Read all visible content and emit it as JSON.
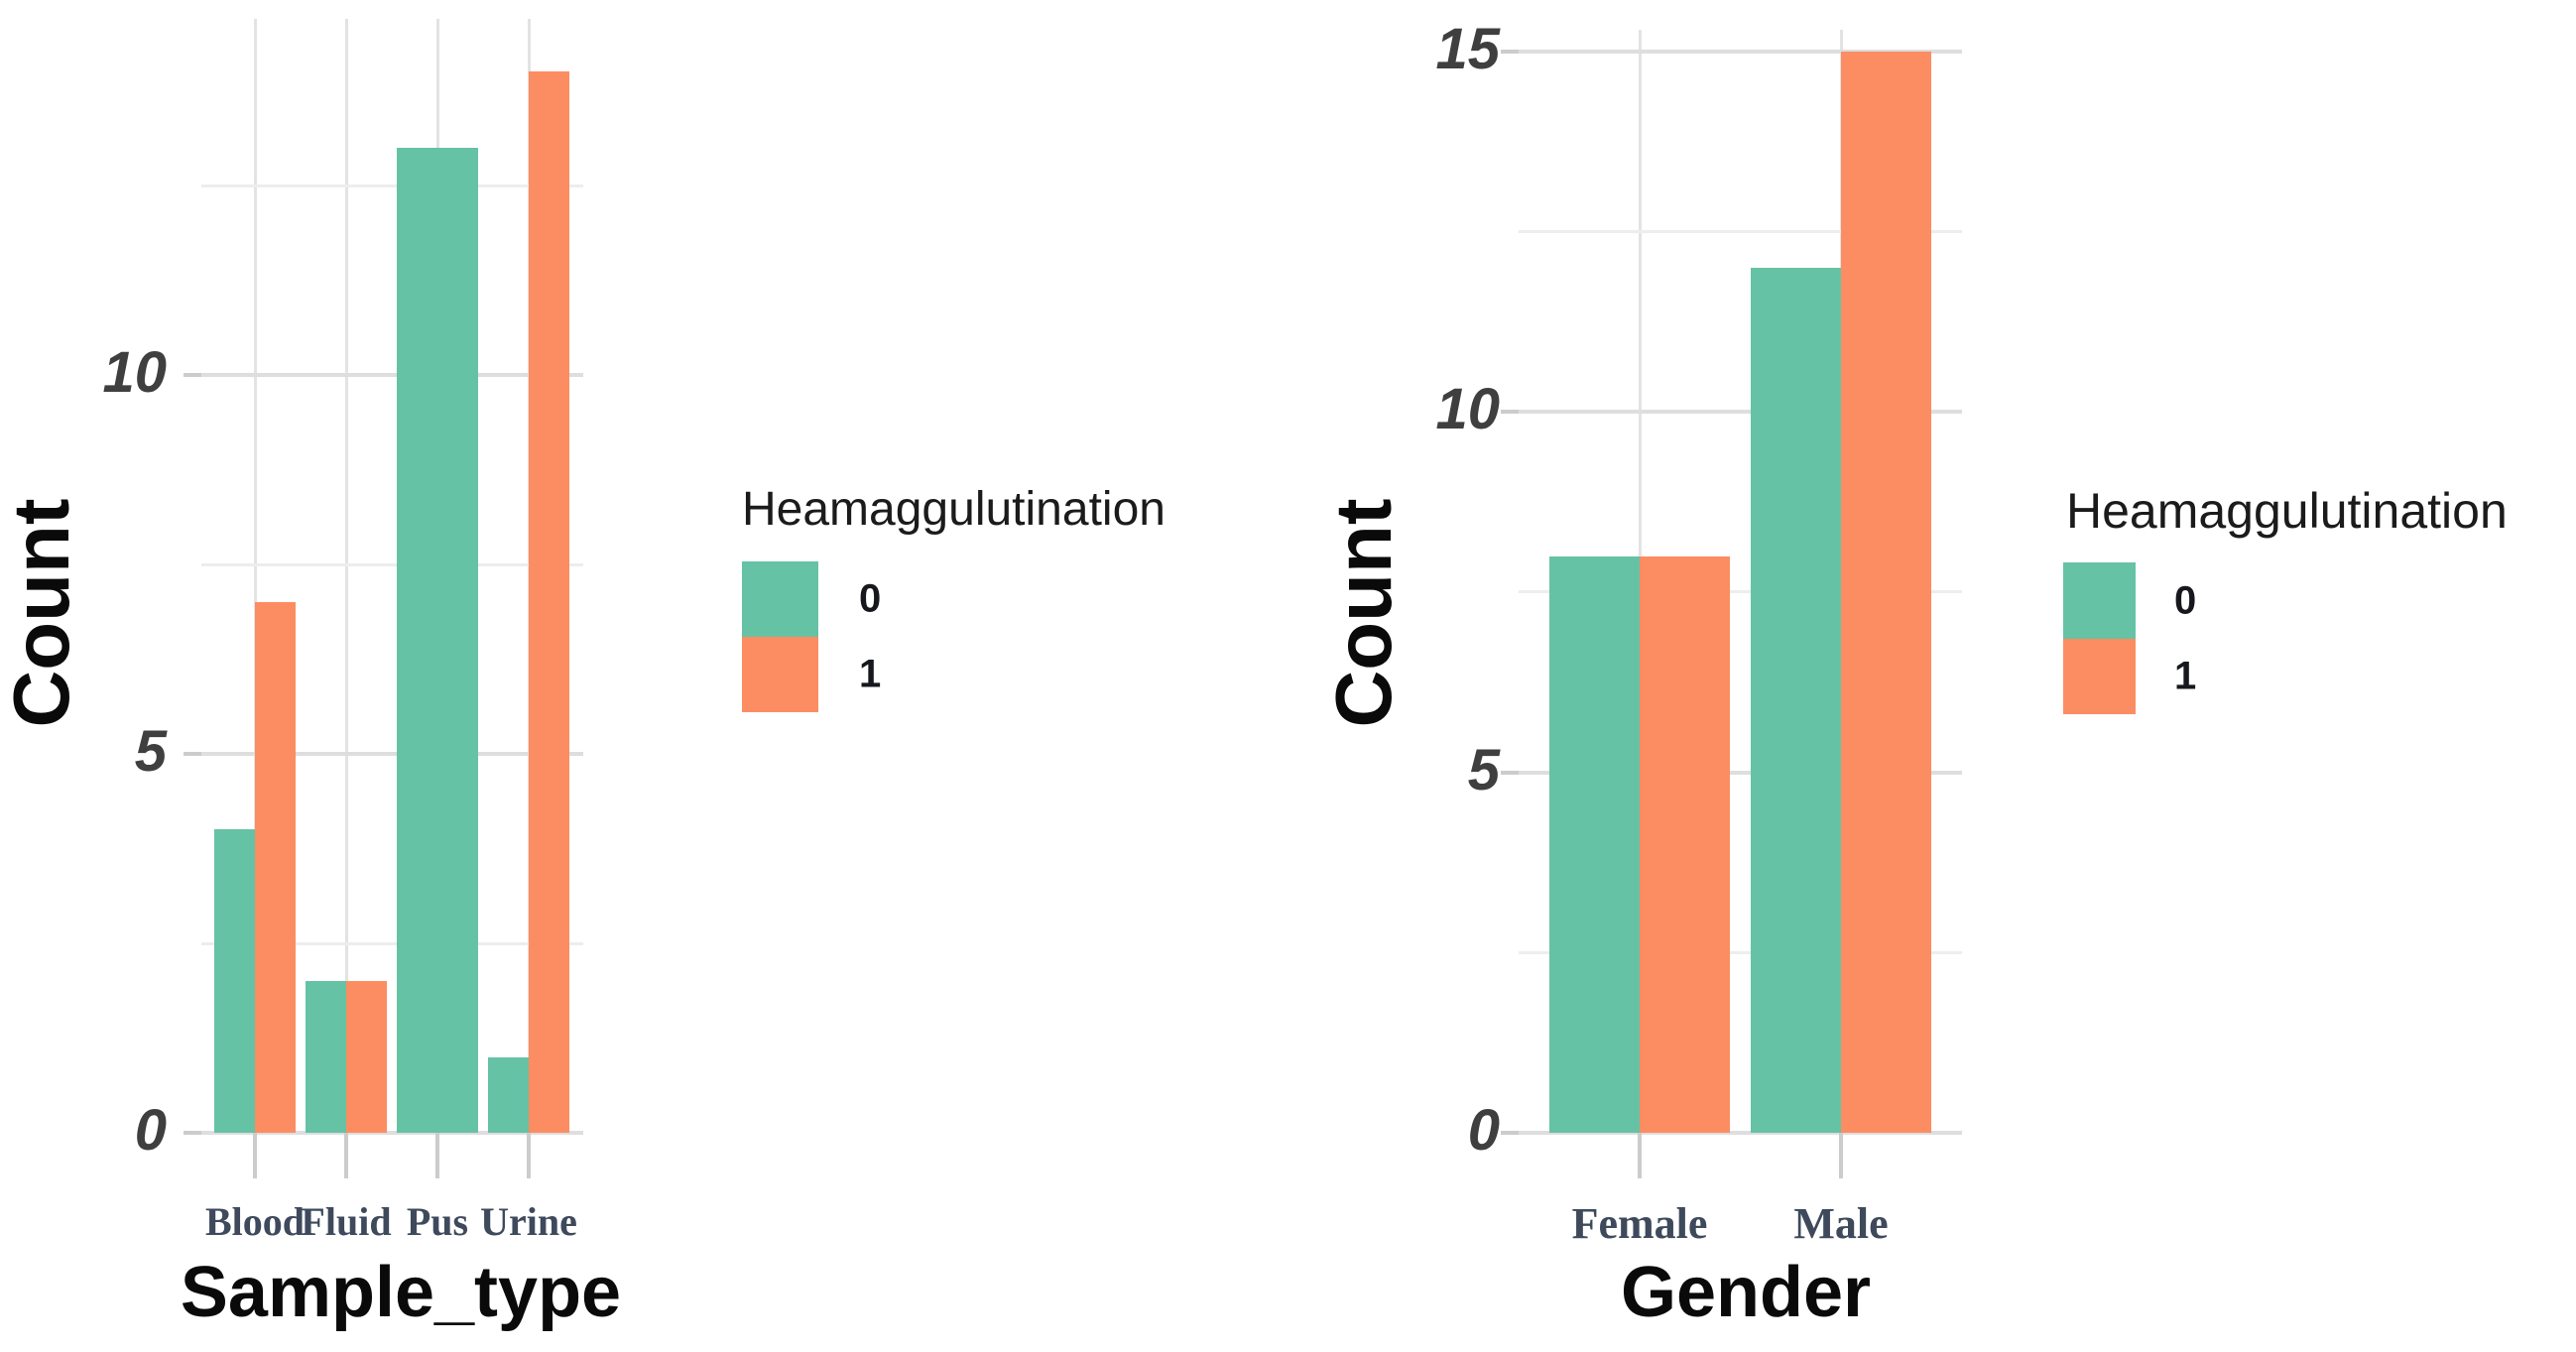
{
  "chart_data": [
    {
      "type": "bar",
      "title": "",
      "xlabel": "Sample_type",
      "ylabel": "Count",
      "categories": [
        "Blood",
        "Fluid",
        "Pus",
        "Urine"
      ],
      "series": [
        {
          "name": "0",
          "color": "#66C2A5",
          "values": [
            4,
            2,
            13,
            1
          ]
        },
        {
          "name": "1",
          "color": "#FC8D62",
          "values": [
            7,
            2,
            null,
            14
          ]
        }
      ],
      "legend_title": "Heamaggulutination",
      "legend_position": "right",
      "ylim": [
        0,
        14.7
      ],
      "yticks_major": [
        0,
        5,
        10
      ],
      "yticks_minor": [
        2.5,
        7.5,
        12.5
      ],
      "grid": true,
      "bar_layout": "dodged"
    },
    {
      "type": "bar",
      "title": "",
      "xlabel": "Gender",
      "ylabel": "Count",
      "categories": [
        "Female",
        "Male"
      ],
      "series": [
        {
          "name": "0",
          "color": "#66C2A5",
          "values": [
            8,
            12
          ]
        },
        {
          "name": "1",
          "color": "#FC8D62",
          "values": [
            8,
            15
          ]
        }
      ],
      "legend_title": "Heamaggulutination",
      "legend_position": "right",
      "ylim": [
        0,
        15.3
      ],
      "yticks_major": [
        0,
        5,
        10,
        15
      ],
      "yticks_minor": [
        2.5,
        7.5,
        12.5
      ],
      "grid": true,
      "bar_layout": "dodged"
    }
  ],
  "colors": {
    "series0": "#66C2A5",
    "series1": "#FC8D62",
    "grid_major": "#dedede",
    "grid_minor": "#ededed",
    "grid_vertical": "#e3e3e3",
    "tick_mark": "#cccccc",
    "y_tick_text": "#3f3f3f",
    "x_tick_text": "#3e4a5c",
    "axis_title_text": "#0a0a0a",
    "background": "#ffffff"
  }
}
